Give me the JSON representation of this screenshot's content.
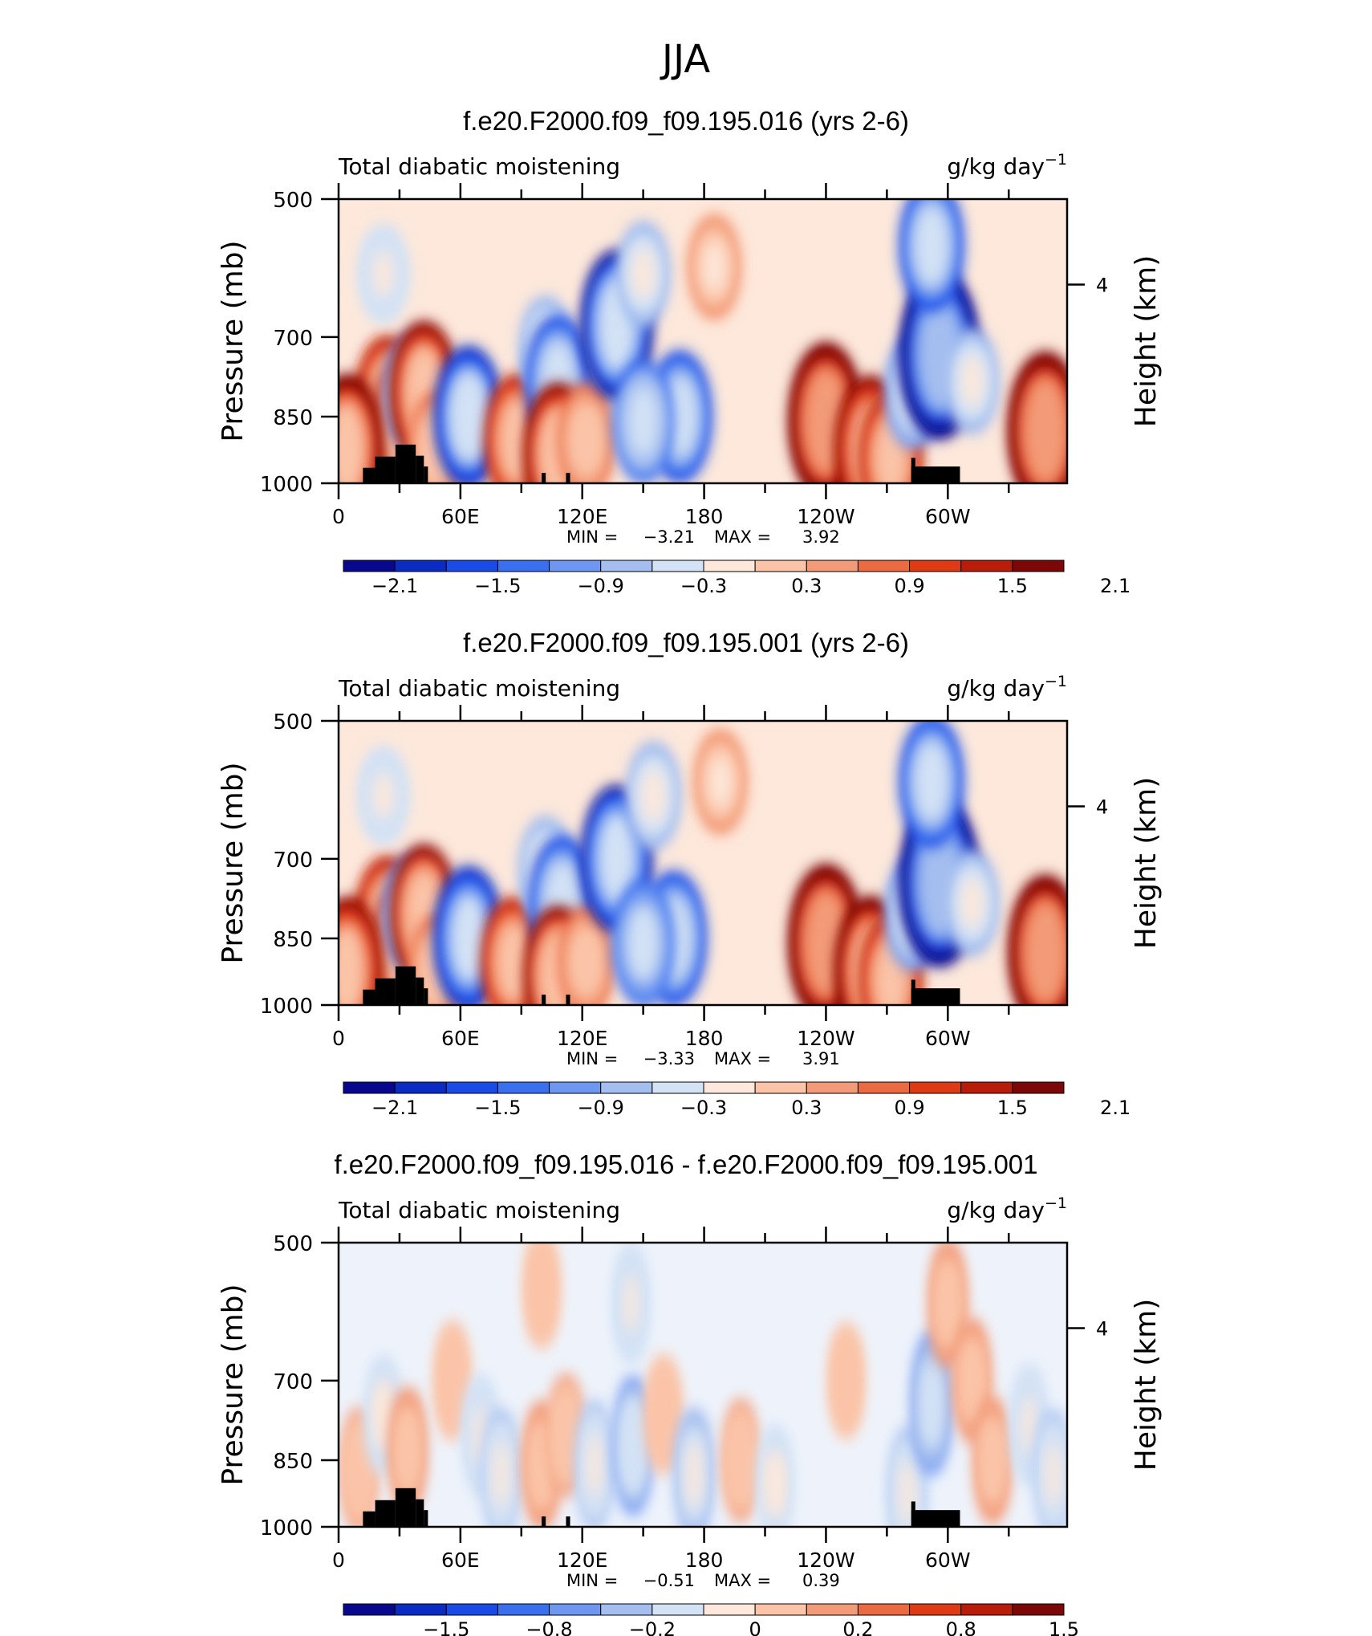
{
  "page_title": "JJA",
  "colors": {
    "palette": [
      "#08088f",
      "#0a2cc2",
      "#1a4be6",
      "#3a6ff0",
      "#6e97f2",
      "#a4beef",
      "#d3e2f5",
      "#fde8db",
      "#fbc4a8",
      "#f39b78",
      "#ec6a42",
      "#de3a14",
      "#b81d0a",
      "#7d0606"
    ],
    "land": "#000000",
    "frame": "#000000"
  },
  "chart_data": [
    {
      "type": "heatmap",
      "title": "f.e20.F2000.f09_f09.195.016 (yrs 2-6)",
      "left_label": "Total diabatic moistening",
      "units": "g/kg day",
      "units_exp": "−1",
      "ylabel": "Pressure (mb)",
      "ylabel_right": "Height (km)",
      "yticks": [
        "500",
        "700",
        "850",
        "1000"
      ],
      "ytick_values": [
        500,
        700,
        850,
        1000
      ],
      "right_ticks": [
        "4"
      ],
      "xticks": [
        "0",
        "60E",
        "120E",
        "180",
        "120W",
        "60W"
      ],
      "xtick_values": [
        0,
        60,
        120,
        180,
        240,
        300
      ],
      "xlim": [
        0,
        358.75
      ],
      "ylim": [
        1000,
        500
      ],
      "stats": {
        "min_label": "MIN =",
        "min": "−3.21",
        "max_label": "MAX =",
        "max": "3.92"
      },
      "colorbar_labels": [
        "−2.1",
        "−1.5",
        "−0.9",
        "−0.3",
        "0.3",
        "0.9",
        "1.5",
        "2.1"
      ],
      "features": [
        {
          "lon": 14,
          "p": 900,
          "v": 1.2
        },
        {
          "lon": 24,
          "p": 820,
          "v": 1.5
        },
        {
          "lon": 30,
          "p": 870,
          "v": 1.3
        },
        {
          "lon": 36,
          "p": 800,
          "v": -0.9
        },
        {
          "lon": 42,
          "p": 800,
          "v": 1.8
        },
        {
          "lon": 4,
          "p": 920,
          "v": 2.1
        },
        {
          "lon": 48,
          "p": 920,
          "v": 0.9
        },
        {
          "lon": 64,
          "p": 850,
          "v": -1.8
        },
        {
          "lon": 88,
          "p": 900,
          "v": 1.5
        },
        {
          "lon": 102,
          "p": 720,
          "v": -0.6
        },
        {
          "lon": 108,
          "p": 780,
          "v": -1.5
        },
        {
          "lon": 108,
          "p": 930,
          "v": 1.8
        },
        {
          "lon": 122,
          "p": 900,
          "v": 0.9
        },
        {
          "lon": 137,
          "p": 680,
          "v": -2.1
        },
        {
          "lon": 150,
          "p": 600,
          "v": -0.6
        },
        {
          "lon": 168,
          "p": 850,
          "v": -1.5
        },
        {
          "lon": 150,
          "p": 860,
          "v": -1.2
        },
        {
          "lon": 185,
          "p": 590,
          "v": 0.6
        },
        {
          "lon": 240,
          "p": 860,
          "v": 2.4
        },
        {
          "lon": 262,
          "p": 920,
          "v": 2.0
        },
        {
          "lon": 272,
          "p": 940,
          "v": 1.4
        },
        {
          "lon": 283,
          "p": 800,
          "v": -0.9
        },
        {
          "lon": 296,
          "p": 730,
          "v": -2.8
        },
        {
          "lon": 292,
          "p": 560,
          "v": -1.5
        },
        {
          "lon": 312,
          "p": 780,
          "v": -0.6
        },
        {
          "lon": 348,
          "p": 880,
          "v": 2.4
        },
        {
          "lon": 22,
          "p": 600,
          "v": -0.4
        }
      ]
    },
    {
      "type": "heatmap",
      "title": "f.e20.F2000.f09_f09.195.001 (yrs 2-6)",
      "left_label": "Total diabatic moistening",
      "units": "g/kg day",
      "units_exp": "−1",
      "ylabel": "Pressure (mb)",
      "ylabel_right": "Height (km)",
      "yticks": [
        "500",
        "700",
        "850",
        "1000"
      ],
      "ytick_values": [
        500,
        700,
        850,
        1000
      ],
      "right_ticks": [
        "4"
      ],
      "xticks": [
        "0",
        "60E",
        "120E",
        "180",
        "120W",
        "60W"
      ],
      "xtick_values": [
        0,
        60,
        120,
        180,
        240,
        300
      ],
      "xlim": [
        0,
        358.75
      ],
      "ylim": [
        1000,
        500
      ],
      "stats": {
        "min_label": "MIN =",
        "min": "−3.33",
        "max_label": "MAX =",
        "max": "3.91"
      },
      "colorbar_labels": [
        "−2.1",
        "−1.5",
        "−0.9",
        "−0.3",
        "0.3",
        "0.9",
        "1.5",
        "2.1"
      ],
      "features": [
        {
          "lon": 14,
          "p": 900,
          "v": 1.3
        },
        {
          "lon": 24,
          "p": 820,
          "v": 1.6
        },
        {
          "lon": 30,
          "p": 870,
          "v": 1.2
        },
        {
          "lon": 36,
          "p": 800,
          "v": -1.0
        },
        {
          "lon": 42,
          "p": 800,
          "v": 1.7
        },
        {
          "lon": 4,
          "p": 920,
          "v": 2.0
        },
        {
          "lon": 48,
          "p": 920,
          "v": 0.8
        },
        {
          "lon": 64,
          "p": 850,
          "v": -1.9
        },
        {
          "lon": 86,
          "p": 900,
          "v": 1.4
        },
        {
          "lon": 102,
          "p": 720,
          "v": -0.7
        },
        {
          "lon": 110,
          "p": 780,
          "v": -1.6
        },
        {
          "lon": 108,
          "p": 930,
          "v": 1.7
        },
        {
          "lon": 122,
          "p": 900,
          "v": 0.8
        },
        {
          "lon": 137,
          "p": 700,
          "v": -2.0
        },
        {
          "lon": 155,
          "p": 600,
          "v": -0.7
        },
        {
          "lon": 165,
          "p": 850,
          "v": -1.6
        },
        {
          "lon": 150,
          "p": 860,
          "v": -1.3
        },
        {
          "lon": 188,
          "p": 580,
          "v": 0.6
        },
        {
          "lon": 240,
          "p": 860,
          "v": 2.4
        },
        {
          "lon": 262,
          "p": 920,
          "v": 2.1
        },
        {
          "lon": 272,
          "p": 940,
          "v": 1.4
        },
        {
          "lon": 283,
          "p": 800,
          "v": -0.9
        },
        {
          "lon": 296,
          "p": 740,
          "v": -2.8
        },
        {
          "lon": 292,
          "p": 580,
          "v": -1.5
        },
        {
          "lon": 312,
          "p": 780,
          "v": -0.6
        },
        {
          "lon": 348,
          "p": 880,
          "v": 2.3
        },
        {
          "lon": 22,
          "p": 600,
          "v": -0.4
        }
      ]
    },
    {
      "type": "heatmap",
      "title": "f.e20.F2000.f09_f09.195.016 - f.e20.F2000.f09_f09.195.001",
      "left_label": "Total diabatic moistening",
      "units": "g/kg day",
      "units_exp": "−1",
      "ylabel": "Pressure (mb)",
      "ylabel_right": "Height (km)",
      "yticks": [
        "500",
        "700",
        "850",
        "1000"
      ],
      "ytick_values": [
        500,
        700,
        850,
        1000
      ],
      "right_ticks": [
        "4"
      ],
      "xticks": [
        "0",
        "60E",
        "120E",
        "180",
        "120W",
        "60W"
      ],
      "xtick_values": [
        0,
        60,
        120,
        180,
        240,
        300
      ],
      "xlim": [
        0,
        358.75
      ],
      "ylim": [
        1000,
        500
      ],
      "stats": {
        "min_label": "MIN =",
        "min": "−0.51",
        "max_label": "MAX =",
        "max": "0.39"
      },
      "colorbar_labels": [
        "−1.5",
        "−0.8",
        "−0.2",
        "0",
        "0.2",
        "0.8",
        "1.5"
      ],
      "features": [
        {
          "lon": 10,
          "p": 870,
          "v": 0.15
        },
        {
          "lon": 22,
          "p": 760,
          "v": -0.12
        },
        {
          "lon": 34,
          "p": 830,
          "v": 0.18
        },
        {
          "lon": 56,
          "p": 700,
          "v": 0.12
        },
        {
          "lon": 70,
          "p": 800,
          "v": -0.15
        },
        {
          "lon": 80,
          "p": 880,
          "v": -0.22
        },
        {
          "lon": 100,
          "p": 860,
          "v": 0.2
        },
        {
          "lon": 112,
          "p": 800,
          "v": 0.14
        },
        {
          "lon": 126,
          "p": 860,
          "v": -0.2
        },
        {
          "lon": 145,
          "p": 820,
          "v": -0.3
        },
        {
          "lon": 160,
          "p": 760,
          "v": 0.12
        },
        {
          "lon": 175,
          "p": 880,
          "v": -0.25
        },
        {
          "lon": 198,
          "p": 850,
          "v": 0.14
        },
        {
          "lon": 215,
          "p": 900,
          "v": -0.1
        },
        {
          "lon": 250,
          "p": 700,
          "v": 0.08
        },
        {
          "lon": 280,
          "p": 920,
          "v": -0.22
        },
        {
          "lon": 292,
          "p": 740,
          "v": -0.35
        },
        {
          "lon": 300,
          "p": 580,
          "v": 0.2
        },
        {
          "lon": 312,
          "p": 700,
          "v": 0.16
        },
        {
          "lon": 322,
          "p": 850,
          "v": 0.18
        },
        {
          "lon": 340,
          "p": 780,
          "v": -0.15
        },
        {
          "lon": 352,
          "p": 880,
          "v": -0.2
        },
        {
          "lon": 144,
          "p": 580,
          "v": -0.14
        },
        {
          "lon": 100,
          "p": 560,
          "v": 0.1
        }
      ]
    }
  ]
}
